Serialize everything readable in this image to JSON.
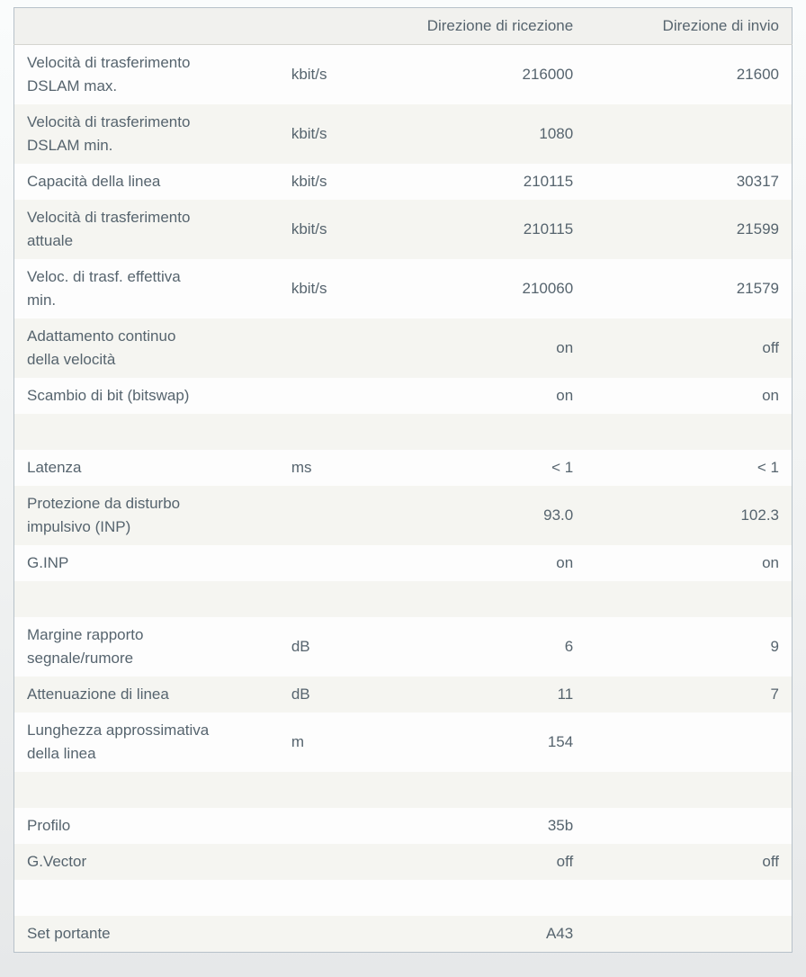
{
  "table": {
    "columns": {
      "rx_header": "Direzione di ricezione",
      "tx_header": "Direzione di invio"
    },
    "rows": [
      {
        "label": "Velocità di trasferimento\nDSLAM max.",
        "unit": "kbit/s",
        "rx": "216000",
        "tx": "21600"
      },
      {
        "label": "Velocità di trasferimento\nDSLAM min.",
        "unit": "kbit/s",
        "rx": "1080",
        "tx": ""
      },
      {
        "label": "Capacità della linea",
        "unit": "kbit/s",
        "rx": "210115",
        "tx": "30317"
      },
      {
        "label": "Velocità di trasferimento\nattuale",
        "unit": "kbit/s",
        "rx": "210115",
        "tx": "21599"
      },
      {
        "label": "Veloc. di trasf. effettiva\nmin.",
        "unit": "kbit/s",
        "rx": "210060",
        "tx": "21579"
      },
      {
        "label": "Adattamento continuo\ndella velocità",
        "unit": "",
        "rx": "on",
        "tx": "off"
      },
      {
        "label": "Scambio di bit (bitswap)",
        "unit": "",
        "rx": "on",
        "tx": "on"
      },
      {
        "label": "",
        "unit": "",
        "rx": "",
        "tx": ""
      },
      {
        "label": "Latenza",
        "unit": "ms",
        "rx": "< 1",
        "tx": "< 1"
      },
      {
        "label": "Protezione da disturbo\nimpulsivo (INP)",
        "unit": "",
        "rx": "93.0",
        "tx": "102.3"
      },
      {
        "label": "G.INP",
        "unit": "",
        "rx": "on",
        "tx": "on"
      },
      {
        "label": "",
        "unit": "",
        "rx": "",
        "tx": ""
      },
      {
        "label": "Margine rapporto\nsegnale/rumore",
        "unit": "dB",
        "rx": "6",
        "tx": "9"
      },
      {
        "label": "Attenuazione di linea",
        "unit": "dB",
        "rx": "11",
        "tx": "7"
      },
      {
        "label": "Lunghezza approssimativa\ndella linea",
        "unit": "m",
        "rx": "154",
        "tx": ""
      },
      {
        "label": "",
        "unit": "",
        "rx": "",
        "tx": ""
      },
      {
        "label": "Profilo",
        "unit": "",
        "rx": "35b",
        "tx": ""
      },
      {
        "label": "G.Vector",
        "unit": "",
        "rx": "off",
        "tx": "off"
      },
      {
        "label": "",
        "unit": "",
        "rx": "",
        "tx": ""
      },
      {
        "label": "Set portante",
        "unit": "",
        "rx": "A43",
        "tx": ""
      }
    ],
    "colors": {
      "text": "#56646e",
      "header_bg": "#f1f1ee",
      "row_shade_bg": "#f5f5f1",
      "row_light_bg": "#fdfdfd",
      "table_border": "#b7c1c9"
    }
  }
}
